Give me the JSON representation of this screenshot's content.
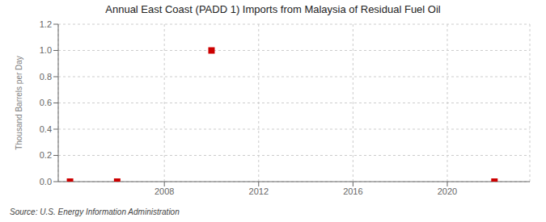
{
  "chart_data": {
    "type": "scatter",
    "title": "Annual East Coast (PADD 1) Imports from Malaysia of Residual Fuel Oil",
    "ylabel": "Thousand Barrels per Day",
    "annotations": [
      "Source: U.S. Energy Information Administration"
    ],
    "x": [
      2004,
      2006,
      2010,
      2022
    ],
    "values": [
      0.0,
      0.0,
      1.0,
      0.0
    ],
    "color": "#cc0000",
    "marker": "square",
    "xlim": [
      2003.5,
      2023.5
    ],
    "xticks": [
      2008,
      2012,
      2016,
      2020
    ],
    "ylim": [
      0.0,
      1.2
    ],
    "yticks": [
      {
        "value": 0.0,
        "label": "0.0"
      },
      0.2,
      0.4,
      0.6,
      0.8,
      {
        "value": 1.0,
        "label": "1.0"
      },
      1.2
    ],
    "grid": true
  }
}
